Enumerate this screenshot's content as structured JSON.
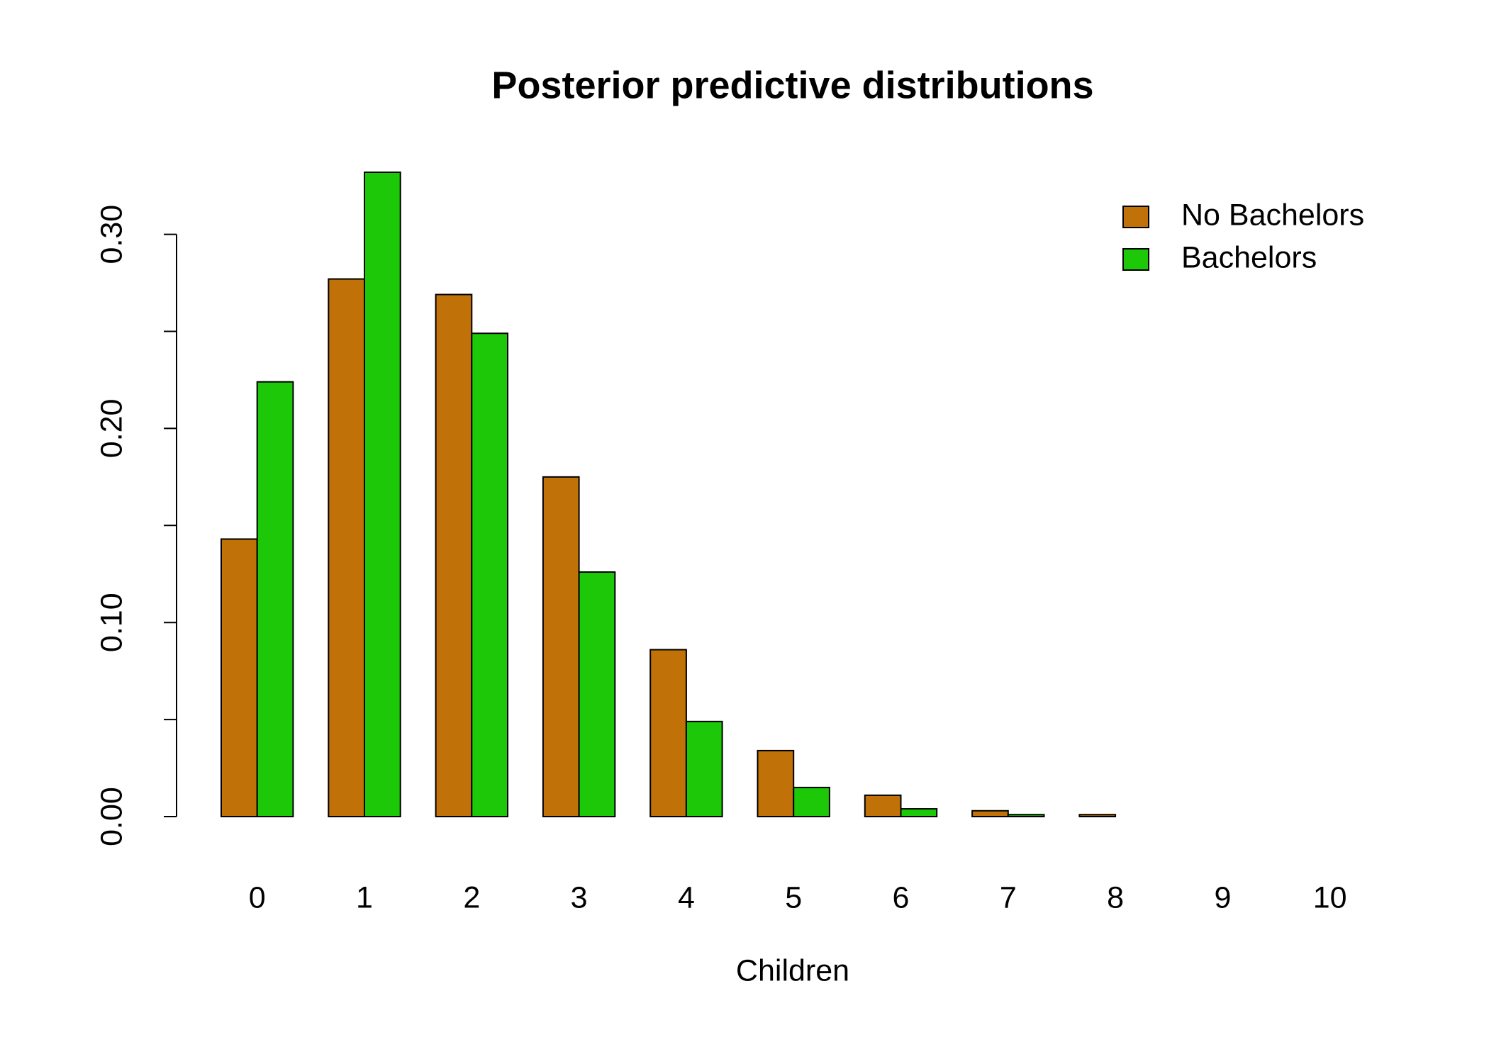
{
  "chart_data": {
    "type": "bar",
    "title": "Posterior predictive distributions",
    "x_label": "Children",
    "categories": [
      "0",
      "1",
      "2",
      "3",
      "4",
      "5",
      "6",
      "7",
      "8",
      "9",
      "10"
    ],
    "series": [
      {
        "name": "No Bachelors",
        "color": "#c07107",
        "values": [
          0.143,
          0.277,
          0.269,
          0.175,
          0.086,
          0.034,
          0.011,
          0.003,
          0.001,
          0,
          0
        ]
      },
      {
        "name": "Bachelors",
        "color": "#1cc808",
        "values": [
          0.224,
          0.332,
          0.249,
          0.126,
          0.049,
          0.015,
          0.004,
          0.001,
          0,
          0,
          0
        ]
      }
    ],
    "ylim": [
      0,
      0.332
    ],
    "yticks": [
      {
        "value": 0,
        "label": "0.00"
      },
      {
        "value": 0.1,
        "label": "0.10"
      },
      {
        "value": 0.2,
        "label": "0.20"
      },
      {
        "value": 0.3,
        "label": "0.30"
      }
    ],
    "minor_yticks": [
      0.05,
      0.15,
      0.25
    ],
    "legend": "top-right",
    "grid": false
  }
}
